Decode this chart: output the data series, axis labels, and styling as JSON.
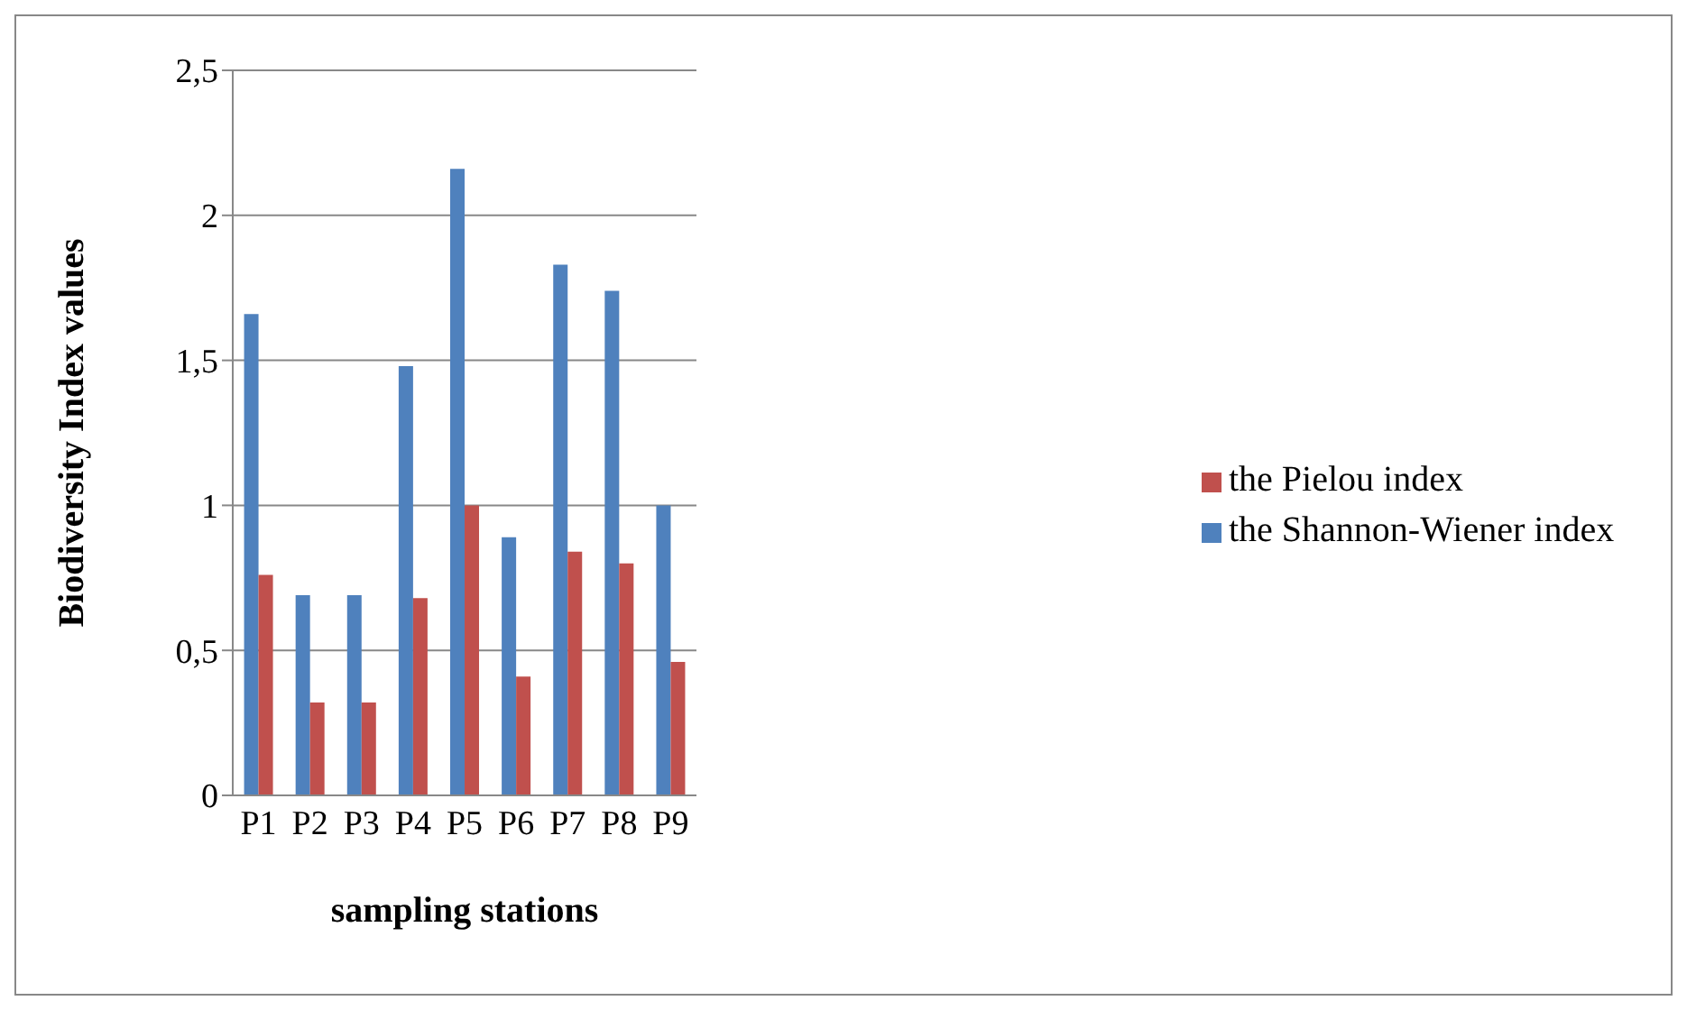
{
  "chart_data": {
    "type": "bar",
    "xlabel": "sampling stations",
    "ylabel": "Biodiversity Index values",
    "categories": [
      "P1",
      "P2",
      "P3",
      "P4",
      "P5",
      "P6",
      "P7",
      "P8",
      "P9"
    ],
    "series": [
      {
        "name": "the Shannon-Wiener index",
        "color": "#4f81bd",
        "values": [
          1.66,
          0.69,
          0.69,
          1.48,
          2.16,
          0.89,
          1.83,
          1.74,
          1.0
        ]
      },
      {
        "name": "the Pielou index",
        "color": "#c0504d",
        "values": [
          0.76,
          0.32,
          0.32,
          0.68,
          1.0,
          0.41,
          0.84,
          0.8,
          0.46
        ]
      }
    ],
    "ylim": [
      0,
      2.5
    ],
    "yticks": [
      0,
      {
        "value": 0.5,
        "label": "0,5"
      },
      1,
      {
        "value": 1.5,
        "label": "1,5"
      },
      2,
      {
        "value": 2.5,
        "label": "2,5"
      }
    ],
    "grid": "y",
    "legend": "right"
  }
}
